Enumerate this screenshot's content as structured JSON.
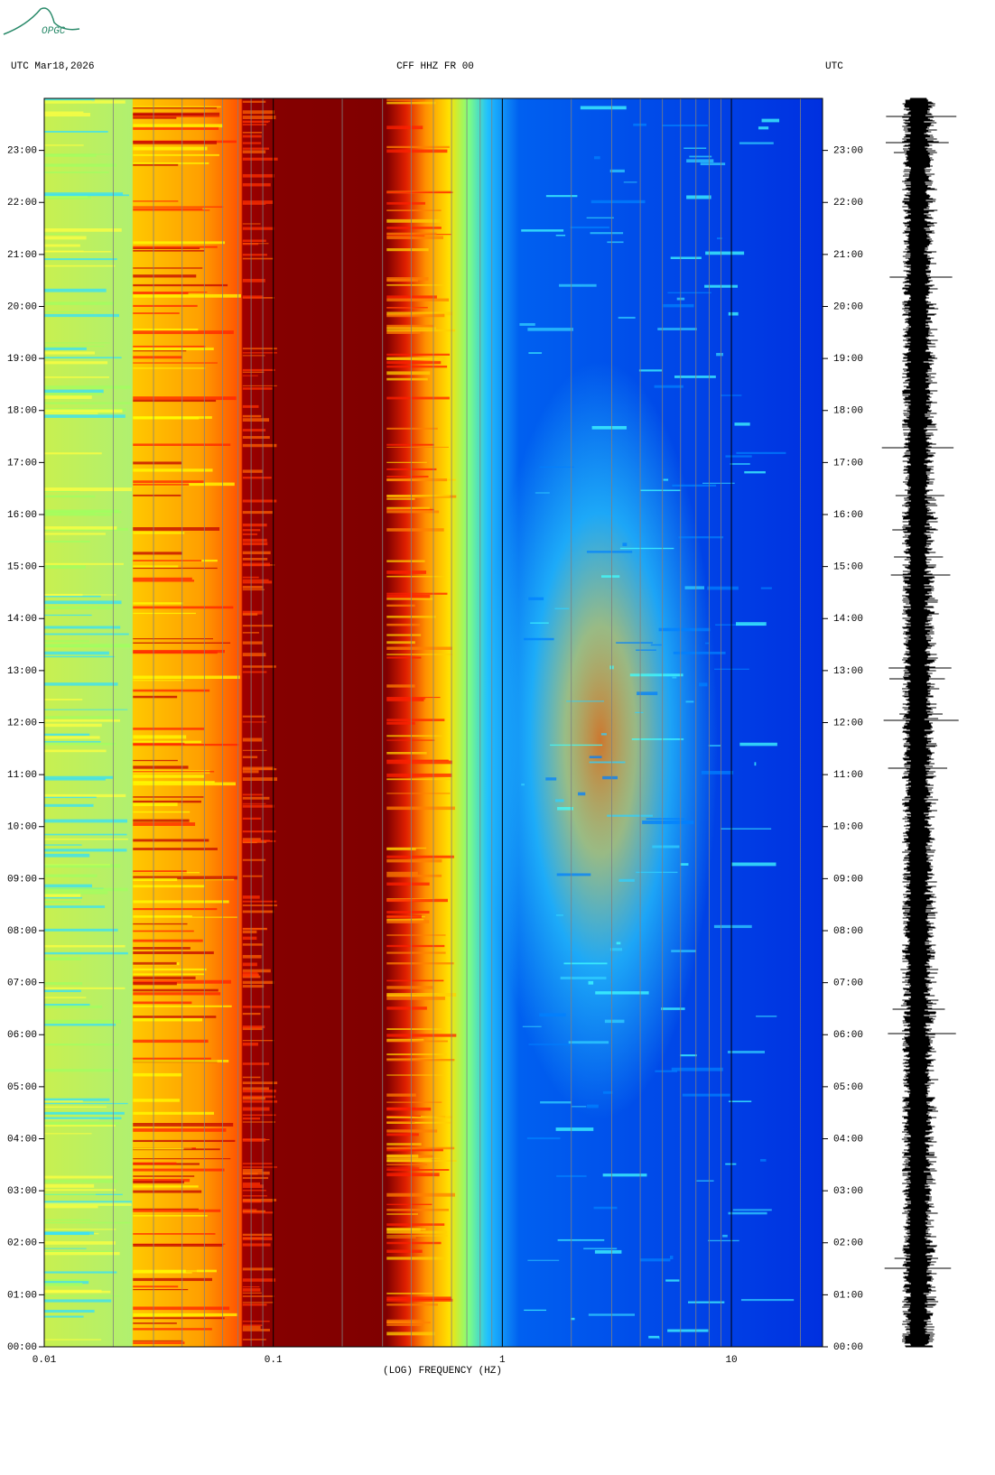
{
  "logo": "OPGC",
  "chart_data": {
    "type": "spectrogram",
    "title_left": "UTC  Mar18,2026",
    "title": "CFF HHZ FR 00",
    "title_right": "UTC",
    "xlabel": "(LOG) FREQUENCY (HZ)",
    "xscale": "log",
    "xlim": [
      0.01,
      25
    ],
    "xticks": [
      0.01,
      0.1,
      1,
      10
    ],
    "ylim": [
      0,
      24
    ],
    "yticks": [
      {
        "value": 0,
        "label": "00:00"
      },
      {
        "value": 1,
        "label": "01:00"
      },
      {
        "value": 2,
        "label": "02:00"
      },
      {
        "value": 3,
        "label": "03:00"
      },
      {
        "value": 4,
        "label": "04:00"
      },
      {
        "value": 5,
        "label": "05:00"
      },
      {
        "value": 6,
        "label": "06:00"
      },
      {
        "value": 7,
        "label": "07:00"
      },
      {
        "value": 8,
        "label": "08:00"
      },
      {
        "value": 9,
        "label": "09:00"
      },
      {
        "value": 10,
        "label": "10:00"
      },
      {
        "value": 11,
        "label": "11:00"
      },
      {
        "value": 12,
        "label": "12:00"
      },
      {
        "value": 13,
        "label": "13:00"
      },
      {
        "value": 14,
        "label": "14:00"
      },
      {
        "value": 15,
        "label": "15:00"
      },
      {
        "value": 16,
        "label": "16:00"
      },
      {
        "value": 17,
        "label": "17:00"
      },
      {
        "value": 18,
        "label": "18:00"
      },
      {
        "value": 19,
        "label": "19:00"
      },
      {
        "value": 20,
        "label": "20:00"
      },
      {
        "value": 21,
        "label": "21:00"
      },
      {
        "value": 22,
        "label": "22:00"
      },
      {
        "value": 23,
        "label": "23:00"
      }
    ]
  }
}
